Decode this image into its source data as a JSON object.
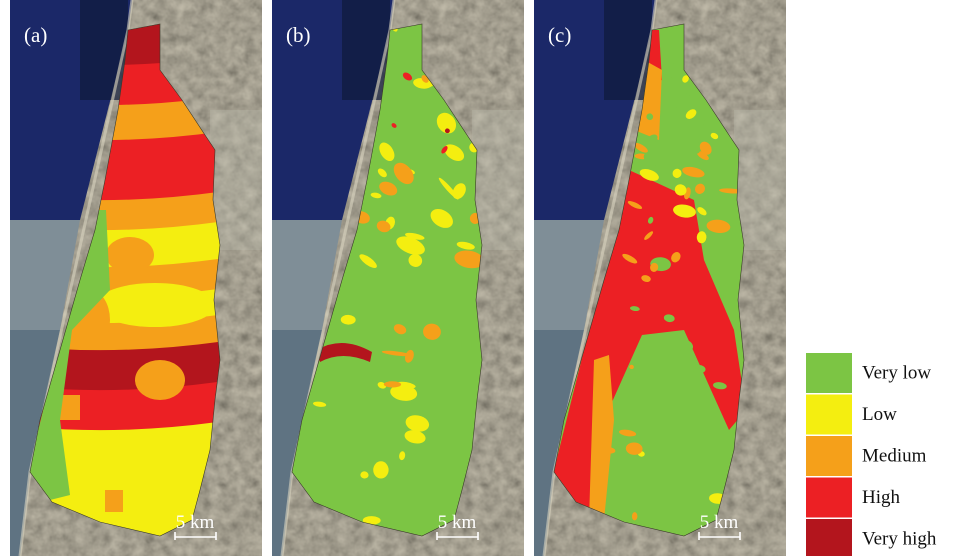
{
  "panels": [
    {
      "label": "(a)",
      "scale_label": "5 km"
    },
    {
      "label": "(b)",
      "scale_label": "5 km"
    },
    {
      "label": "(c)",
      "scale_label": "5 km"
    }
  ],
  "legend": [
    {
      "label": "Very low",
      "color": "#7cc544"
    },
    {
      "label": "Low",
      "color": "#f4ee10"
    },
    {
      "label": "Medium",
      "color": "#f5a01a"
    },
    {
      "label": "High",
      "color": "#ec2024"
    },
    {
      "label": "Very high",
      "color": "#b3151d"
    }
  ]
}
